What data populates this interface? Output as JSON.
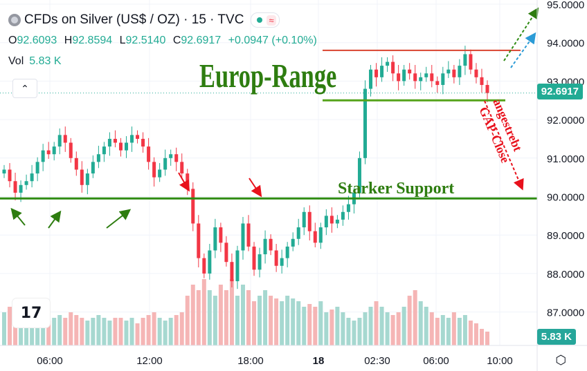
{
  "header": {
    "title": "CFDs on Silver (US$ / OZ) · 15 · TVC",
    "open_label": "O",
    "open": "92.6093",
    "high_label": "H",
    "high": "92.8594",
    "low_label": "L",
    "low": "92.5140",
    "close_label": "C",
    "close": "92.6917",
    "change": "+0.0947 (+0.10%)",
    "vol_label": "Vol",
    "vol_value": "5.83 K",
    "status_icon": "wave-icon"
  },
  "badges": {
    "price": "92.6917",
    "volume": "5.83 K"
  },
  "logo_text": "17",
  "colors": {
    "up": "#22ab94",
    "down": "#f23645",
    "vol_up": "#a6d8d0",
    "vol_down": "#f5b5b5",
    "support": "#2e8b12",
    "range_top": "#d9432f",
    "range_bottom": "#55a31a",
    "annot_green": "#2e7d10",
    "annot_red": "#e8111c"
  },
  "chart_data": {
    "type": "candlestick",
    "yticks": [
      "95.0000",
      "94.0000",
      "93.0000",
      "92.0000",
      "91.0000",
      "90.0000",
      "89.0000",
      "88.0000",
      "87.0000"
    ],
    "ytick_values": [
      95,
      94,
      93,
      92,
      91,
      90,
      89,
      88,
      87
    ],
    "xticks": [
      "06:00",
      "12:00",
      "18:00",
      "18",
      "02:30",
      "06:00",
      "10:00"
    ],
    "current_price": 92.6917,
    "support_level": 89.95,
    "range_top": 93.8,
    "range_bottom": 92.5,
    "close_series": [
      90.7,
      90.4,
      90.1,
      90.3,
      90.4,
      90.6,
      90.9,
      91.2,
      91.1,
      91.3,
      91.6,
      91.4,
      91.0,
      90.7,
      90.3,
      90.6,
      90.9,
      91.1,
      91.3,
      91.5,
      91.4,
      91.2,
      91.4,
      91.6,
      91.5,
      91.3,
      90.9,
      90.5,
      90.7,
      91.0,
      91.1,
      90.9,
      90.6,
      90.2,
      89.3,
      88.4,
      88.0,
      88.6,
      89.2,
      88.8,
      88.3,
      87.8,
      88.6,
      89.3,
      88.7,
      88.1,
      88.5,
      88.9,
      88.6,
      88.2,
      88.4,
      88.7,
      88.9,
      89.2,
      89.6,
      89.1,
      88.8,
      89.2,
      89.5,
      89.3,
      89.4,
      89.6,
      89.8,
      90.1,
      91.0,
      92.8,
      93.3,
      93.1,
      93.4,
      93.5,
      93.2,
      93.0,
      93.3,
      93.2,
      93.0,
      93.1,
      93.2,
      93.0,
      92.9,
      93.2,
      93.3,
      93.1,
      93.4,
      93.7,
      93.3,
      93.1,
      92.9,
      92.69
    ],
    "volume_series": [
      0.6,
      0.7,
      0.5,
      0.6,
      0.5,
      0.55,
      0.6,
      0.5,
      0.45,
      0.5,
      0.55,
      0.5,
      0.6,
      0.55,
      0.5,
      0.45,
      0.5,
      0.55,
      0.5,
      0.45,
      0.5,
      0.5,
      0.45,
      0.5,
      0.4,
      0.5,
      0.55,
      0.6,
      0.5,
      0.45,
      0.5,
      0.55,
      0.6,
      0.9,
      1.1,
      1.0,
      1.2,
      1.0,
      0.9,
      1.1,
      1.0,
      1.2,
      0.9,
      1.1,
      1.0,
      0.8,
      0.9,
      1.0,
      0.9,
      0.85,
      0.8,
      0.9,
      0.85,
      0.8,
      0.7,
      0.75,
      0.7,
      0.8,
      0.6,
      0.65,
      0.7,
      0.6,
      0.5,
      0.45,
      0.5,
      0.6,
      0.7,
      0.8,
      0.7,
      0.6,
      0.55,
      0.6,
      0.7,
      0.9,
      1.0,
      0.8,
      0.7,
      0.6,
      0.5,
      0.55,
      0.5,
      0.6,
      0.5,
      0.55,
      0.45,
      0.4,
      0.3,
      0.25
    ],
    "annotations": [
      {
        "text": "Europ-Range",
        "color": "green"
      },
      {
        "text": "Starker Support",
        "color": "green"
      },
      {
        "text": "angestrebt",
        "color": "red"
      },
      {
        "text": "GAP-Close",
        "color": "red"
      }
    ]
  }
}
